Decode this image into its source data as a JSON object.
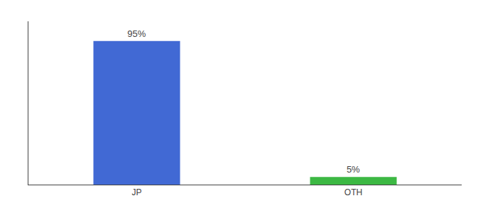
{
  "chart_data": {
    "type": "bar",
    "categories": [
      "JP",
      "OTH"
    ],
    "values": [
      95,
      5
    ],
    "value_labels": [
      "95%",
      "5%"
    ],
    "colors": [
      "#4169d4",
      "#3cb843"
    ],
    "ylim": [
      0,
      108
    ],
    "data_labels": true,
    "tick_labels": "x",
    "grid": false
  }
}
